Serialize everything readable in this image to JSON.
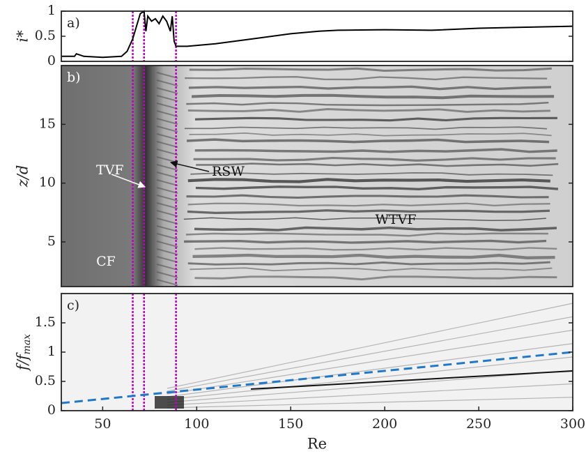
{
  "chart_data": [
    {
      "type": "line",
      "panel_label": "a)",
      "y_label": "i*",
      "x": [
        28,
        35,
        36,
        40,
        50,
        60,
        63,
        66,
        68,
        70,
        72,
        73,
        74,
        76,
        78,
        80,
        82,
        84,
        86,
        87,
        88,
        89,
        95,
        110,
        130,
        150,
        165,
        175,
        200,
        225,
        250,
        275,
        300
      ],
      "values": [
        0.1,
        0.1,
        0.15,
        0.1,
        0.08,
        0.1,
        0.2,
        0.45,
        0.7,
        0.95,
        1.0,
        0.6,
        0.9,
        0.8,
        0.85,
        0.75,
        0.9,
        0.8,
        0.6,
        0.9,
        0.4,
        0.3,
        0.3,
        0.35,
        0.45,
        0.55,
        0.6,
        0.62,
        0.63,
        0.62,
        0.66,
        0.68,
        0.7
      ],
      "color": "#000000",
      "xlim": [
        28,
        300
      ],
      "ylim": [
        0,
        1
      ],
      "yticks": [
        0,
        0.5,
        1
      ],
      "vlines": [
        66,
        72,
        89
      ],
      "vline_color": "#c000c0"
    },
    {
      "type": "image",
      "panel_label": "b)",
      "y_label": "z/d",
      "xlim": [
        28,
        300
      ],
      "ylim": [
        1.2,
        20
      ],
      "yticks": [
        5,
        10,
        15
      ],
      "vlines": [
        66,
        72,
        89
      ],
      "vline_color": "#c000c0",
      "annotations": [
        "TVF",
        "RSW",
        "WTVF",
        "CF"
      ]
    },
    {
      "type": "line",
      "panel_label": "c)",
      "y_label": "f/f",
      "y_label_sub": "max",
      "x_label": "Re",
      "x": [
        28,
        300
      ],
      "values": [
        0.13,
        1.0
      ],
      "color": "#1f78c8",
      "xlim": [
        28,
        300
      ],
      "ylim": [
        0,
        2
      ],
      "yticks": [
        0,
        0.5,
        1,
        1.5
      ],
      "xticks": [
        50,
        100,
        150,
        200,
        250,
        300
      ],
      "vlines": [
        66,
        72,
        89
      ],
      "vline_color": "#c000c0"
    }
  ]
}
